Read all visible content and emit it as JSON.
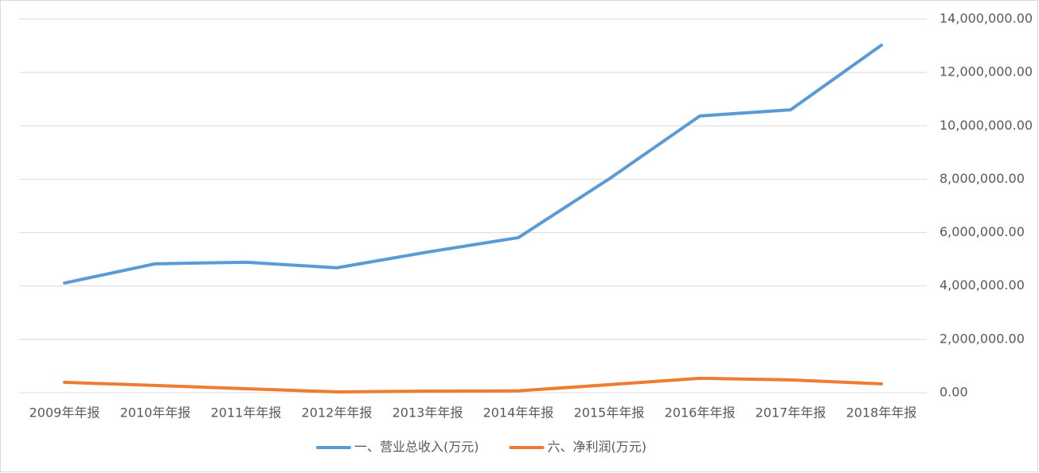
{
  "chart_data": {
    "type": "line",
    "categories": [
      "2009年年报",
      "2010年年报",
      "2011年年报",
      "2012年年报",
      "2013年年报",
      "2014年年报",
      "2015年年报",
      "2016年年报",
      "2017年年报",
      "2018年年报"
    ],
    "series": [
      {
        "name": "一、营业总收入(万元)",
        "color": "#5b9bd5",
        "values": [
          4110000,
          4830000,
          4890000,
          4680000,
          5270000,
          5810000,
          8010000,
          10370000,
          10600000,
          13020000
        ]
      },
      {
        "name": "六、净利润(万元)",
        "color": "#ed7d31",
        "values": [
          390000,
          270000,
          150000,
          30000,
          60000,
          70000,
          300000,
          540000,
          480000,
          330000
        ]
      }
    ],
    "ylim": [
      0,
      14000000
    ],
    "yticks": [
      {
        "value": 0,
        "label": "0.00"
      },
      {
        "value": 2000000,
        "label": "2,000,000.00"
      },
      {
        "value": 4000000,
        "label": "4,000,000.00"
      },
      {
        "value": 6000000,
        "label": "6,000,000.00"
      },
      {
        "value": 8000000,
        "label": "8,000,000.00"
      },
      {
        "value": 10000000,
        "label": "10,000,000.00"
      },
      {
        "value": 12000000,
        "label": "12,000,000.00"
      },
      {
        "value": 14000000,
        "label": "14,000,000.00"
      }
    ],
    "grid": true,
    "legend": "bottom"
  }
}
